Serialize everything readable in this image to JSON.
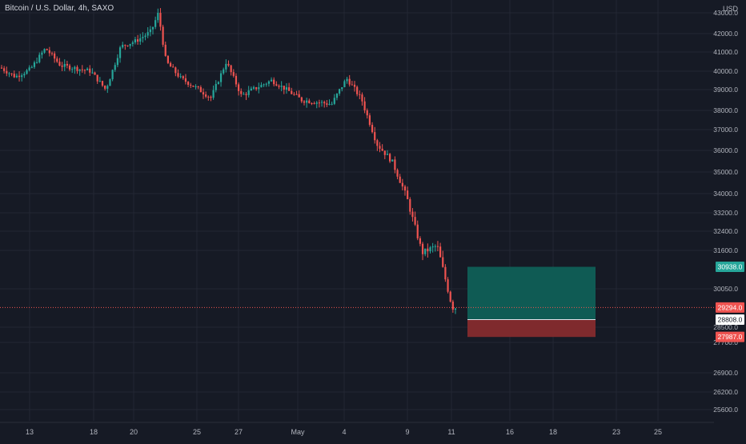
{
  "symbol_title": "Bitcoin / U.S. Dollar, 4h, SAXO",
  "currency": "USD",
  "colors": {
    "background": "#161a25",
    "grid": "#232733",
    "up": "#26a69a",
    "down": "#ef5350",
    "current_line": "#ef5350",
    "target_zone": "#0f5b54",
    "stop_zone": "#7f2a2d"
  },
  "chart_data": {
    "type": "candlestick",
    "title": "Bitcoin / U.S. Dollar, 4h, SAXO",
    "y_axis_unit": "USD",
    "x_tick_labels": [
      "13",
      "18",
      "20",
      "25",
      "27",
      "May",
      "4",
      "9",
      "11",
      "16",
      "18",
      "23",
      "25"
    ],
    "y_tick_labels": [
      "43000.0",
      "42000.0",
      "41000.0",
      "40000.0",
      "39000.0",
      "38000.0",
      "37000.0",
      "36000.0",
      "35000.0",
      "34000.0",
      "33200.0",
      "32400.0",
      "31600.0",
      "30050.0",
      "28500.0",
      "27700.0",
      "26900.0",
      "26200.0",
      "25600.0"
    ],
    "price_tags": [
      {
        "label": "30938.0",
        "value": 30938.0,
        "role": "target"
      },
      {
        "label": "29294.0",
        "value": 29294.0,
        "role": "last-price"
      },
      {
        "label": "28808.0",
        "value": 28808.0,
        "role": "entry"
      },
      {
        "label": "27987.0",
        "value": 27987.0,
        "role": "stop"
      }
    ],
    "position_tool": {
      "entry": 28808.0,
      "target": 30938.0,
      "stop": 27987.0,
      "start_date": "May 11",
      "end_date": "May 21"
    },
    "approx_path_keypoints": [
      {
        "date": "Apr 11",
        "price": 40200
      },
      {
        "date": "Apr 12",
        "price": 39700
      },
      {
        "date": "Apr 13",
        "price": 40100
      },
      {
        "date": "Apr 14",
        "price": 41200
      },
      {
        "date": "Apr 15",
        "price": 40300
      },
      {
        "date": "Apr 17",
        "price": 40000
      },
      {
        "date": "Apr 18",
        "price": 39000
      },
      {
        "date": "Apr 19",
        "price": 41300
      },
      {
        "date": "Apr 20",
        "price": 41600
      },
      {
        "date": "Apr 21",
        "price": 42100
      },
      {
        "date": "Apr 21.5",
        "price": 43000
      },
      {
        "date": "Apr 22",
        "price": 40500
      },
      {
        "date": "Apr 23",
        "price": 39600
      },
      {
        "date": "Apr 25",
        "price": 38600
      },
      {
        "date": "Apr 26",
        "price": 40500
      },
      {
        "date": "Apr 27",
        "price": 38700
      },
      {
        "date": "Apr 29",
        "price": 39500
      },
      {
        "date": "May 1",
        "price": 38500
      },
      {
        "date": "May 3",
        "price": 38300
      },
      {
        "date": "May 4",
        "price": 39600
      },
      {
        "date": "May 5",
        "price": 38500
      },
      {
        "date": "May 6",
        "price": 36300
      },
      {
        "date": "May 7",
        "price": 35500
      },
      {
        "date": "May 8",
        "price": 33800
      },
      {
        "date": "May 9",
        "price": 31500
      },
      {
        "date": "May 10",
        "price": 31800
      },
      {
        "date": "May 11",
        "price": 29294
      }
    ]
  }
}
